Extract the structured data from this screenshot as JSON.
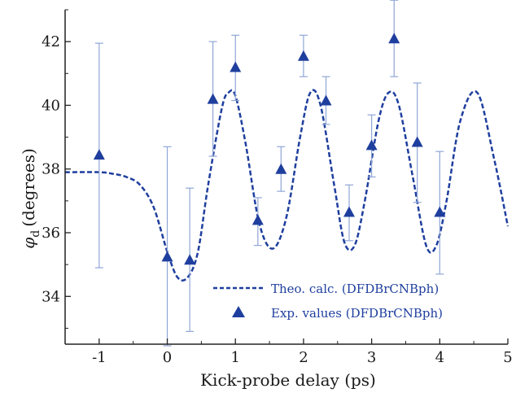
{
  "chart_data": {
    "type": "scatter",
    "xlabel": "Kick-probe delay (ps)",
    "ylabel_symbol": "φ",
    "ylabel_subscript": "d",
    "ylabel_unit": "(degrees)",
    "xlim": [
      -1.5,
      5
    ],
    "ylim": [
      32.5,
      43
    ],
    "x_ticks": [
      -1,
      0,
      1,
      2,
      3,
      4,
      5
    ],
    "y_ticks": [
      34,
      36,
      38,
      40,
      42
    ],
    "x_tick_labels": [
      "-1",
      "0",
      "1",
      "2",
      "3",
      "4",
      "5"
    ],
    "y_tick_labels": [
      "34",
      "36",
      "38",
      "40",
      "42"
    ],
    "legend_position": "bottom-right",
    "colors": {
      "series": "#1f3f9e",
      "errorbar": "#8fa6d6",
      "axis": "#222222"
    },
    "series": [
      {
        "name": "Theo. calc. (DFDBrCNBph)",
        "style": "dashed-line",
        "x": [
          -1.5,
          -1.0,
          -0.8,
          -0.6,
          -0.4,
          -0.2,
          0.0,
          0.15,
          0.3,
          0.45,
          0.6,
          0.8,
          0.9,
          1.0,
          1.15,
          1.35,
          1.55,
          1.75,
          1.95,
          2.1,
          2.25,
          2.45,
          2.6,
          2.75,
          2.9,
          3.1,
          3.25,
          3.4,
          3.6,
          3.8,
          3.95,
          4.1,
          4.3,
          4.55,
          4.8,
          5.0
        ],
        "y": [
          37.9,
          37.9,
          37.85,
          37.75,
          37.5,
          36.8,
          35.4,
          34.6,
          34.6,
          35.4,
          37.5,
          39.9,
          40.4,
          40.3,
          38.8,
          36.3,
          35.5,
          36.5,
          39.0,
          40.4,
          40.0,
          37.5,
          35.7,
          35.6,
          37.0,
          39.5,
          40.4,
          40.0,
          37.8,
          35.6,
          35.6,
          37.0,
          39.5,
          40.4,
          38.3,
          36.2
        ]
      },
      {
        "name": "Exp. values (DFDBrCNBph)",
        "style": "triangle-markers",
        "x": [
          -1.0,
          0.0,
          0.33,
          0.67,
          1.0,
          1.33,
          1.67,
          2.0,
          2.33,
          2.67,
          3.0,
          3.33,
          3.67,
          4.0
        ],
        "y": [
          38.45,
          35.25,
          35.15,
          40.2,
          41.2,
          36.4,
          38.0,
          41.55,
          40.15,
          36.65,
          38.75,
          42.1,
          38.85,
          36.65
        ],
        "err_low": [
          3.55,
          2.8,
          2.25,
          1.8,
          1.05,
          0.8,
          0.7,
          0.65,
          0.75,
          0.9,
          1.0,
          1.2,
          1.9,
          1.95
        ],
        "err_high": [
          3.5,
          3.45,
          2.25,
          1.8,
          1.0,
          0.7,
          0.7,
          0.65,
          0.75,
          0.85,
          0.95,
          1.2,
          1.85,
          1.9
        ]
      }
    ]
  }
}
